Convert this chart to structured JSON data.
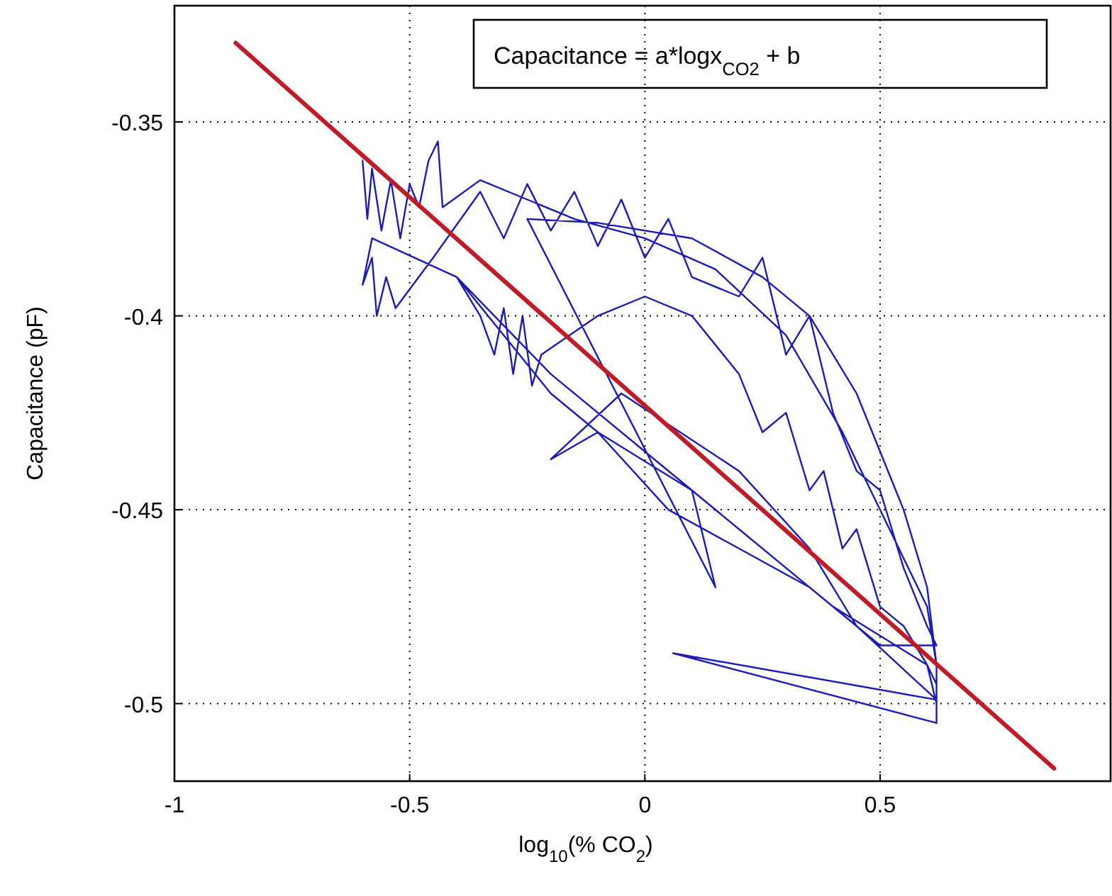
{
  "chart_data": {
    "type": "line",
    "xlabel": "log$_{10}$(% CO$_{2}$)",
    "ylabel": "Capacitance (pF)",
    "annotations": [
      "Capacitance =  a*logx$_{CO2}$ + b"
    ],
    "xlim": [
      -1,
      0.99
    ],
    "xticks": [
      -1,
      -0.5,
      0,
      0.5
    ],
    "ylim": [
      -0.52,
      -0.32
    ],
    "yticks": [
      -0.5,
      -0.45,
      -0.4,
      -0.35
    ],
    "grid": true,
    "line_style": "solid",
    "series": [
      {
        "color": "#1c1cb4",
        "x": [
          -0.6,
          -0.59,
          -0.58,
          -0.56,
          -0.54,
          -0.52,
          -0.5,
          -0.48,
          -0.46,
          -0.44,
          -0.43,
          -0.35,
          -0.25,
          -0.15,
          0.0,
          0.15,
          0.3,
          0.42,
          0.52,
          0.6,
          0.62,
          0.62,
          0.6,
          0.4,
          0.2,
          0.0,
          -0.2,
          -0.4,
          -0.58,
          -0.6,
          -0.58,
          -0.57,
          -0.55,
          -0.53,
          -0.45,
          -0.35,
          -0.3,
          -0.25,
          -0.2,
          -0.15,
          -0.1,
          -0.05,
          0.0,
          0.05,
          0.1,
          0.2,
          0.25,
          0.3,
          0.35,
          0.4,
          0.45,
          0.5,
          0.55,
          0.6,
          0.62,
          0.5,
          0.35,
          0.2,
          0.05,
          -0.1,
          -0.2,
          -0.3,
          -0.4,
          -0.35,
          -0.32,
          -0.3,
          -0.28,
          -0.26,
          -0.24,
          -0.22,
          -0.1,
          0.0,
          0.1,
          0.2,
          0.25,
          0.3,
          0.35,
          0.38,
          0.42,
          0.45,
          0.5,
          0.55,
          0.6,
          0.62,
          0.62,
          0.06,
          0.62,
          0.45,
          0.35,
          0.2,
          -0.05,
          -0.2,
          -0.1,
          0.1,
          0.15,
          -0.25,
          -0.1,
          0.1,
          0.25,
          0.35,
          0.45,
          0.55,
          0.6,
          0.62
        ],
        "values": [
          -0.36,
          -0.375,
          -0.362,
          -0.378,
          -0.365,
          -0.38,
          -0.366,
          -0.372,
          -0.36,
          -0.355,
          -0.372,
          -0.365,
          -0.37,
          -0.375,
          -0.38,
          -0.388,
          -0.405,
          -0.43,
          -0.455,
          -0.475,
          -0.49,
          -0.5,
          -0.49,
          -0.475,
          -0.455,
          -0.435,
          -0.415,
          -0.39,
          -0.38,
          -0.392,
          -0.385,
          -0.4,
          -0.39,
          -0.398,
          -0.385,
          -0.368,
          -0.38,
          -0.366,
          -0.378,
          -0.368,
          -0.382,
          -0.37,
          -0.385,
          -0.375,
          -0.39,
          -0.395,
          -0.385,
          -0.41,
          -0.4,
          -0.425,
          -0.44,
          -0.445,
          -0.465,
          -0.48,
          -0.485,
          -0.485,
          -0.47,
          -0.46,
          -0.45,
          -0.43,
          -0.42,
          -0.405,
          -0.39,
          -0.4,
          -0.41,
          -0.398,
          -0.415,
          -0.4,
          -0.418,
          -0.41,
          -0.4,
          -0.395,
          -0.4,
          -0.415,
          -0.43,
          -0.425,
          -0.445,
          -0.44,
          -0.46,
          -0.455,
          -0.475,
          -0.48,
          -0.49,
          -0.495,
          -0.505,
          -0.487,
          -0.499,
          -0.48,
          -0.46,
          -0.44,
          -0.42,
          -0.437,
          -0.43,
          -0.445,
          -0.47,
          -0.375,
          -0.376,
          -0.38,
          -0.39,
          -0.4,
          -0.42,
          -0.45,
          -0.47,
          -0.49
        ]
      },
      {
        "color": "#c01c28",
        "x": [
          -0.87,
          0.87
        ],
        "values": [
          -0.3296,
          -0.5167
        ]
      }
    ]
  }
}
